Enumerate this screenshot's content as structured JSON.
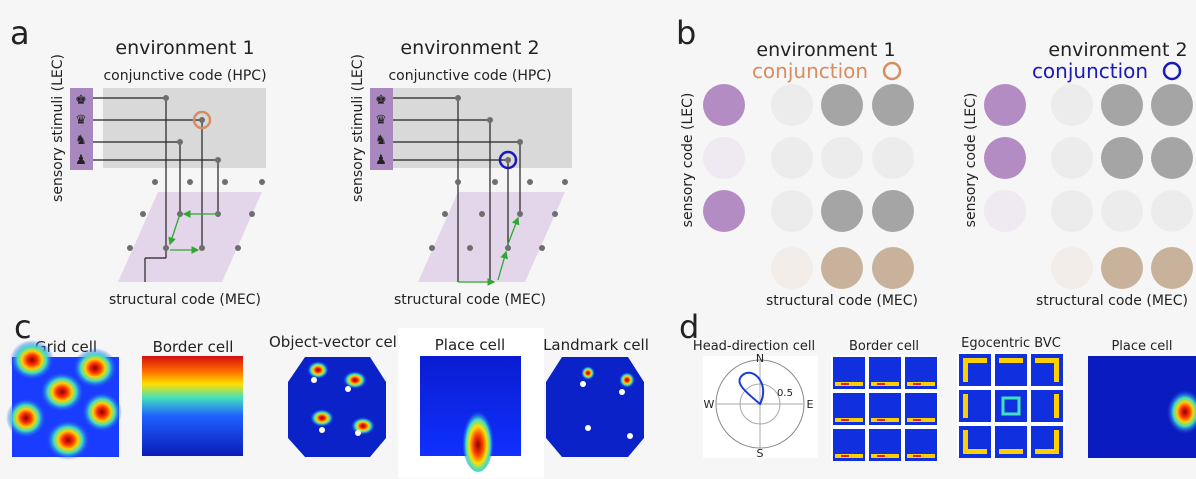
{
  "colors": {
    "bg": "#f6f6f6",
    "purple": "#b48cc4",
    "purple_light": "#e3d6ea",
    "purple_faint": "#efe9f2",
    "sensory_bar": "#a987bf",
    "gray_box": "#d9d9d9",
    "dot_dark": "#a5a5a5",
    "dot_light": "#ececec",
    "tan": "#c8b29c",
    "tan_light": "#f2ede8",
    "orange": "#d98c5f",
    "blue": "#1a1ab8",
    "green": "#2ea82e",
    "line": "#222222"
  },
  "panels": {
    "a": {
      "label": "a",
      "env1": {
        "title": "environment 1",
        "hpc_label": "conjunctive code (HPC)",
        "lec_label": "sensory stimuli (LEC)",
        "mec_label": "structural code (MEC)"
      },
      "env2": {
        "title": "environment 2",
        "hpc_label": "conjunctive code (HPC)",
        "lec_label": "sensory stimuli (LEC)",
        "mec_label": "structural code (MEC)"
      },
      "chess_icons": [
        "♚",
        "♛",
        "♞",
        "♟"
      ]
    },
    "b": {
      "label": "b",
      "env1": {
        "title": "environment 1",
        "conj_label": "conjunction",
        "lec_label": "sensory code (LEC)",
        "mec_label": "structural code (MEC)"
      },
      "env2": {
        "title": "environment 2",
        "conj_label": "conjunction",
        "lec_label": "sensory code (LEC)",
        "mec_label": "structural code (MEC)"
      }
    },
    "c": {
      "label": "c",
      "cells": [
        "Grid cell",
        "Border cell",
        "Object-vector cell",
        "Place cell",
        "Landmark cell"
      ]
    },
    "d": {
      "label": "d",
      "cells": [
        "Head-direction cell",
        "Border cell",
        "Egocentric BVC",
        "Place cell"
      ],
      "compass": {
        "n": "N",
        "s": "S",
        "e": "E",
        "w": "W",
        "ring_label": "0.5"
      }
    }
  }
}
